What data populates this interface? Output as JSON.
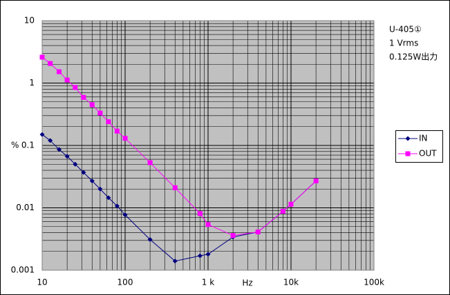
{
  "chart_data": {
    "type": "line",
    "log_x": true,
    "log_y": true,
    "grid": true,
    "x_label": "Hz",
    "y_label": "%",
    "annotations": [
      "U-405①",
      "1 Vrms",
      "0.125W出力"
    ],
    "x": [
      10,
      12.5,
      16,
      20,
      25,
      31.5,
      40,
      50,
      63,
      80,
      100,
      200,
      400,
      800,
      1000,
      2000,
      4000,
      8000,
      10000,
      20000
    ],
    "series": [
      {
        "name": "IN",
        "color": "#000080",
        "marker": "diamond",
        "values": [
          0.15,
          0.12,
          0.086,
          0.067,
          0.05,
          0.037,
          0.027,
          0.02,
          0.0145,
          0.0107,
          0.0077,
          0.0031,
          0.0014,
          0.0017,
          0.0018,
          0.0034,
          0.0041,
          0.0088,
          0.0114,
          0.027
        ]
      },
      {
        "name": "OUT",
        "color": "#ff00ff",
        "marker": "square",
        "values": [
          2.6,
          2.06,
          1.52,
          1.12,
          0.85,
          0.59,
          0.45,
          0.33,
          0.24,
          0.17,
          0.13,
          0.053,
          0.021,
          0.0081,
          0.0054,
          0.0036,
          0.0041,
          0.0088,
          0.0114,
          0.027
        ]
      }
    ],
    "xlim": [
      10,
      100000
    ],
    "xticks": [
      10,
      100,
      {
        "value": 1000,
        "label": "1 k"
      },
      {
        "value": 10000,
        "label": "10k"
      },
      {
        "value": 100000,
        "label": "100k"
      }
    ],
    "ylim": [
      0.001,
      10
    ],
    "yticks": [
      0.001,
      0.01,
      0.1,
      1,
      10
    ],
    "legend": "right"
  }
}
